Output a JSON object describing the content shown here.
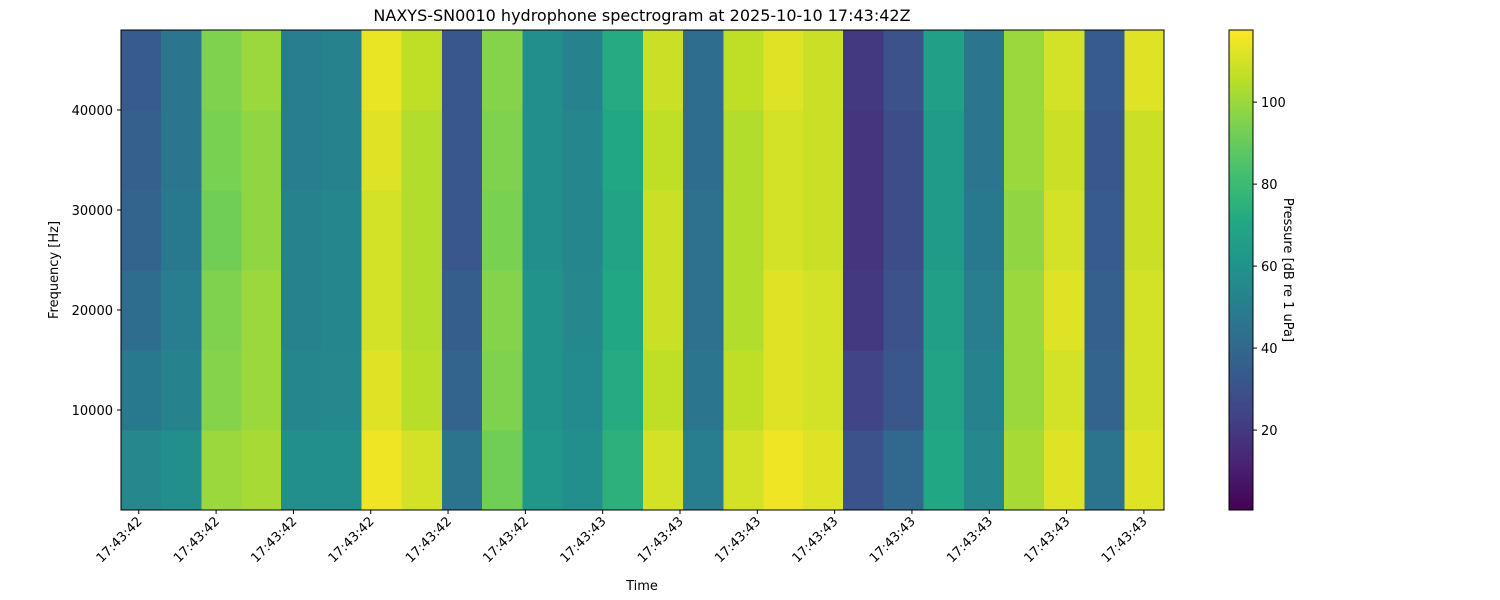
{
  "chart_data": {
    "type": "heatmap",
    "title": "NAXYS-SN0010 hydrophone spectrogram at 2025-10-10 17:43:42Z",
    "x_label": "Time",
    "y_label": "Frequency [Hz]",
    "colorbar_label": "Pressure [dB re 1 uPa]",
    "colormap": "viridis",
    "x": [
      42.403,
      42.455,
      42.507,
      42.559,
      42.61,
      42.662,
      42.714,
      42.766,
      42.818,
      42.87,
      42.922,
      42.974,
      43.026,
      43.078,
      43.13,
      43.182,
      43.234,
      43.285,
      43.337,
      43.389,
      43.441,
      43.493,
      43.545,
      43.597,
      43.649,
      43.701
    ],
    "y": [
      4000,
      12000,
      20000,
      28000,
      36000,
      44000
    ],
    "z": [
      [
        55,
        58,
        100,
        102,
        58,
        58,
        115,
        110,
        45,
        92,
        62,
        58,
        75,
        110,
        50,
        110,
        115,
        112,
        30,
        40,
        70,
        55,
        102,
        112,
        45,
        112
      ],
      [
        48,
        52,
        96,
        100,
        54,
        55,
        112,
        105,
        38,
        95,
        60,
        56,
        72,
        106,
        46,
        106,
        112,
        110,
        24,
        32,
        68,
        52,
        100,
        110,
        38,
        110
      ],
      [
        42,
        50,
        95,
        100,
        52,
        54,
        110,
        104,
        35,
        96,
        60,
        55,
        70,
        108,
        44,
        104,
        112,
        110,
        20,
        30,
        66,
        50,
        100,
        112,
        36,
        110
      ],
      [
        38,
        48,
        92,
        98,
        52,
        54,
        110,
        104,
        32,
        94,
        58,
        54,
        68,
        108,
        44,
        104,
        110,
        108,
        18,
        28,
        64,
        48,
        98,
        110,
        34,
        108
      ],
      [
        36,
        46,
        94,
        98,
        50,
        52,
        112,
        104,
        32,
        95,
        58,
        54,
        70,
        106,
        42,
        104,
        110,
        108,
        18,
        28,
        64,
        46,
        100,
        108,
        32,
        108
      ],
      [
        34,
        46,
        95,
        100,
        50,
        52,
        114,
        106,
        32,
        96,
        58,
        52,
        72,
        108,
        42,
        106,
        112,
        108,
        20,
        30,
        66,
        46,
        100,
        110,
        34,
        112
      ]
    ],
    "xlim": [
      42.377,
      43.726
    ],
    "xticks": [
      {
        "value": 42.4,
        "label": "17:43:42"
      },
      {
        "value": 42.5,
        "label": "17:43:42"
      },
      {
        "value": 42.6,
        "label": "17:43:42"
      },
      {
        "value": 42.7,
        "label": "17:43:42"
      },
      {
        "value": 42.8,
        "label": "17:43:42"
      },
      {
        "value": 42.9,
        "label": "17:43:42"
      },
      {
        "value": 43.0,
        "label": "17:43:43"
      },
      {
        "value": 43.1,
        "label": "17:43:43"
      },
      {
        "value": 43.2,
        "label": "17:43:43"
      },
      {
        "value": 43.3,
        "label": "17:43:43"
      },
      {
        "value": 43.4,
        "label": "17:43:43"
      },
      {
        "value": 43.5,
        "label": "17:43:43"
      },
      {
        "value": 43.6,
        "label": "17:43:43"
      },
      {
        "value": 43.7,
        "label": "17:43:43"
      }
    ],
    "ylim": [
      0,
      48000
    ],
    "yticks": [
      10000,
      20000,
      30000,
      40000
    ],
    "clim": [
      0.5,
      117.6
    ],
    "cticks": [
      20,
      40,
      60,
      80,
      100
    ]
  }
}
